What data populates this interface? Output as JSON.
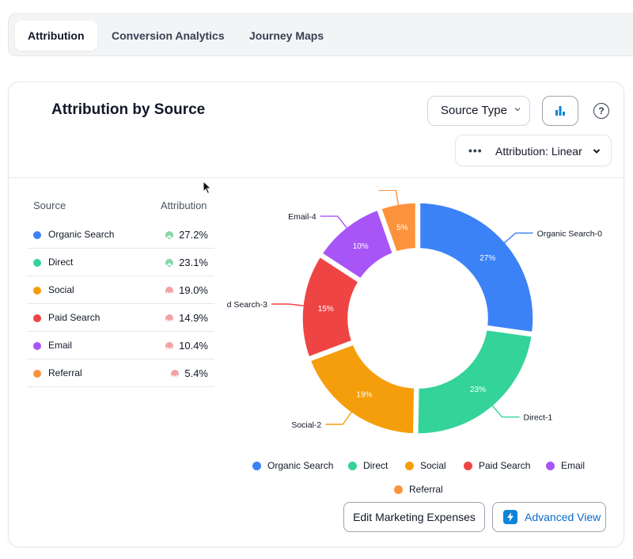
{
  "tabs": [
    {
      "label": "Attribution",
      "active": true
    },
    {
      "label": "Conversion Analytics",
      "active": false
    },
    {
      "label": "Journey Maps",
      "active": false
    }
  ],
  "card": {
    "title": "Attribution by Source",
    "source_select": "Source Type",
    "attribution_select": "Attribution: Linear",
    "help_label": "?"
  },
  "table": {
    "headers": {
      "source": "Source",
      "attribution": "Attribution"
    },
    "rows": [
      {
        "name": "Organic Search",
        "value": "27.2%",
        "color": "#3b82f6",
        "trend": "up"
      },
      {
        "name": "Direct",
        "value": "23.1%",
        "color": "#34d399",
        "trend": "up"
      },
      {
        "name": "Social",
        "value": "19.0%",
        "color": "#f59e0b",
        "trend": "down"
      },
      {
        "name": "Paid Search",
        "value": "14.9%",
        "color": "#ef4444",
        "trend": "down"
      },
      {
        "name": "Email",
        "value": "10.4%",
        "color": "#a855f7",
        "trend": "down"
      },
      {
        "name": "Referral",
        "value": "5.4%",
        "color": "#fb923c",
        "trend": "down"
      }
    ]
  },
  "chart_data": {
    "type": "pie",
    "categories": [
      "Organic Search",
      "Direct",
      "Social",
      "Paid Search",
      "Email",
      "Referral"
    ],
    "values": [
      27.2,
      23.1,
      19.0,
      14.9,
      10.4,
      5.4
    ],
    "slice_labels": [
      "27%",
      "23%",
      "19%",
      "15%",
      "10%",
      "5%"
    ],
    "callouts": [
      "Organic Search-0",
      "Direct-1",
      "Social-2",
      "d Search-3",
      "Email-4",
      ""
    ],
    "colors": [
      "#3b82f6",
      "#34d399",
      "#f59e0b",
      "#ef4444",
      "#a855f7",
      "#fb923c"
    ],
    "legend": {
      "placement": "bottom",
      "items": [
        "Organic Search",
        "Direct",
        "Social",
        "Paid Search",
        "Email",
        "Referral"
      ]
    }
  },
  "buttons": {
    "edit_expenses": "Edit Marketing Expenses",
    "advanced_view": "Advanced View"
  }
}
